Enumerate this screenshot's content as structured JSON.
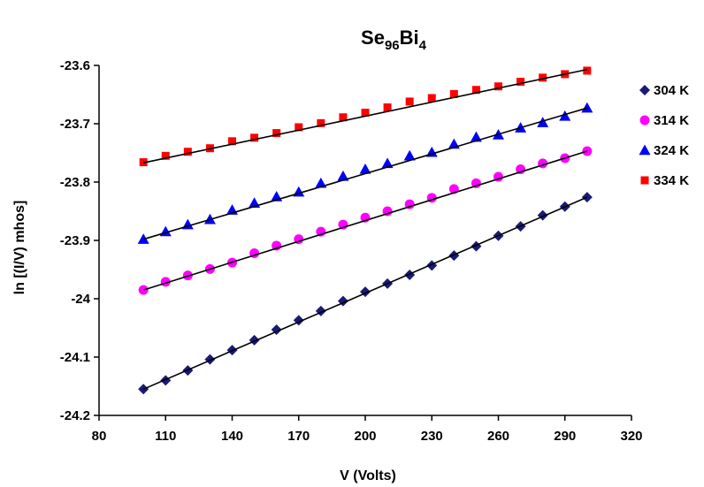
{
  "chart_data": {
    "type": "scatter",
    "title_main": "Se",
    "title_sub1": "96",
    "title_mid": "Bi",
    "title_sub2": "4",
    "xlabel": "V (Volts)",
    "ylabel": "ln [(I/V) mhos]",
    "xlim": [
      80,
      320
    ],
    "ylim": [
      -24.2,
      -23.6
    ],
    "xticks": [
      80,
      110,
      140,
      170,
      200,
      230,
      260,
      290,
      320
    ],
    "xtick_labels": [
      "80",
      "110",
      "140",
      "170",
      "200",
      "230",
      "260",
      "290",
      "320"
    ],
    "yticks": [
      -23.6,
      -23.7,
      -23.8,
      -23.9,
      -24,
      -24.1,
      -24.2
    ],
    "ytick_labels": [
      "-23.6",
      "-23.7",
      "-23.8",
      "-23.9",
      "-24",
      "-24.1",
      "-24.2"
    ],
    "grid": false,
    "legend_position": "right",
    "x": [
      100,
      110,
      120,
      130,
      140,
      150,
      160,
      170,
      180,
      190,
      200,
      210,
      220,
      230,
      240,
      250,
      260,
      270,
      280,
      290,
      300
    ],
    "series": [
      {
        "name": "304 K",
        "marker": "diamond",
        "color": "#1a1a78",
        "values": [
          -24.155,
          -24.14,
          -24.123,
          -24.104,
          -24.088,
          -24.071,
          -24.053,
          -24.037,
          -24.021,
          -24.004,
          -23.988,
          -23.974,
          -23.959,
          -23.943,
          -23.926,
          -23.91,
          -23.892,
          -23.876,
          -23.857,
          -23.842,
          -23.826
        ],
        "fit": [
          -24.155,
          -23.826
        ]
      },
      {
        "name": "314 K",
        "marker": "circle",
        "color": "#ff00ff",
        "values": [
          -23.985,
          -23.971,
          -23.96,
          -23.949,
          -23.938,
          -23.922,
          -23.909,
          -23.898,
          -23.885,
          -23.873,
          -23.861,
          -23.85,
          -23.838,
          -23.827,
          -23.812,
          -23.802,
          -23.791,
          -23.778,
          -23.768,
          -23.759,
          -23.747
        ],
        "fit": [
          -23.985,
          -23.747
        ]
      },
      {
        "name": "324 K",
        "marker": "triangle",
        "color": "#0000ff",
        "values": [
          -23.898,
          -23.885,
          -23.873,
          -23.864,
          -23.848,
          -23.836,
          -23.825,
          -23.817,
          -23.802,
          -23.79,
          -23.778,
          -23.768,
          -23.755,
          -23.749,
          -23.735,
          -23.723,
          -23.719,
          -23.707,
          -23.698,
          -23.687,
          -23.673
        ],
        "fit": [
          -23.898,
          -23.673
        ]
      },
      {
        "name": "334 K",
        "marker": "square",
        "color": "#ff0000",
        "values": [
          -23.766,
          -23.755,
          -23.748,
          -23.742,
          -23.73,
          -23.724,
          -23.716,
          -23.706,
          -23.699,
          -23.689,
          -23.681,
          -23.672,
          -23.662,
          -23.656,
          -23.649,
          -23.642,
          -23.636,
          -23.628,
          -23.621,
          -23.615,
          -23.609
        ],
        "fit": [
          -23.767,
          -23.607
        ]
      }
    ]
  }
}
